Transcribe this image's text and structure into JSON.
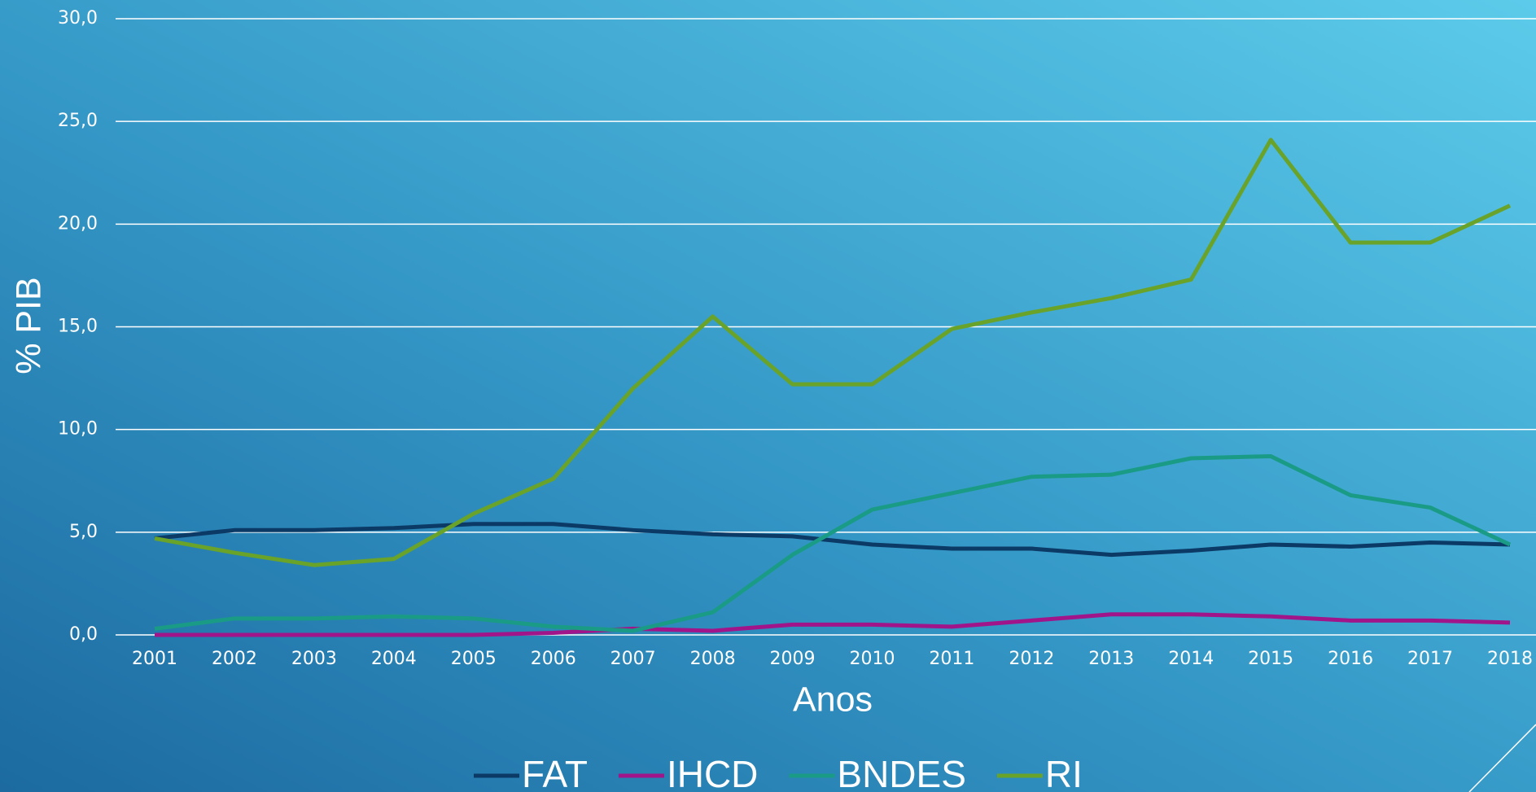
{
  "chart_data": {
    "type": "line",
    "x_label": "Anos",
    "y_label": "% PIB",
    "x": [
      2001,
      2002,
      2003,
      2004,
      2005,
      2006,
      2007,
      2008,
      2009,
      2010,
      2011,
      2012,
      2013,
      2014,
      2015,
      2016,
      2017,
      2018
    ],
    "xlim": [
      2001,
      2018
    ],
    "ylim": [
      0,
      30
    ],
    "yticks": [
      {
        "value": 0,
        "label": "0,0"
      },
      {
        "value": 5,
        "label": "5,0"
      },
      {
        "value": 10,
        "label": "10,0"
      },
      {
        "value": 15,
        "label": "15,0"
      },
      {
        "value": 20,
        "label": "20,0"
      },
      {
        "value": 25,
        "label": "25,0"
      },
      {
        "value": 30,
        "label": "30,0"
      }
    ],
    "grid": true,
    "legend": "bottom",
    "series": [
      {
        "name": "FAT",
        "color": "#0b3a66",
        "values": [
          4.7,
          5.1,
          5.1,
          5.2,
          5.4,
          5.4,
          5.1,
          4.9,
          4.8,
          4.4,
          4.2,
          4.2,
          3.9,
          4.1,
          4.4,
          4.3,
          4.5,
          4.4
        ]
      },
      {
        "name": "IHCD",
        "color": "#a0168a",
        "values": [
          0,
          0,
          0,
          0,
          0,
          0.1,
          0.3,
          0.2,
          0.5,
          0.5,
          0.4,
          0.7,
          1.0,
          1.0,
          0.9,
          0.7,
          0.7,
          0.6
        ]
      },
      {
        "name": "BNDES",
        "color": "#1a9b86",
        "values": [
          0.3,
          0.8,
          0.8,
          0.9,
          0.8,
          0.4,
          0.2,
          1.1,
          3.9,
          6.1,
          6.9,
          7.7,
          7.8,
          8.6,
          8.7,
          6.8,
          6.2,
          4.4
        ]
      },
      {
        "name": "RI",
        "color": "#6aa329",
        "values": [
          4.7,
          4.0,
          3.4,
          3.7,
          5.9,
          7.6,
          12.0,
          15.5,
          12.2,
          12.2,
          14.9,
          15.7,
          16.4,
          17.3,
          24.1,
          19.1,
          19.1,
          20.9
        ]
      }
    ]
  }
}
